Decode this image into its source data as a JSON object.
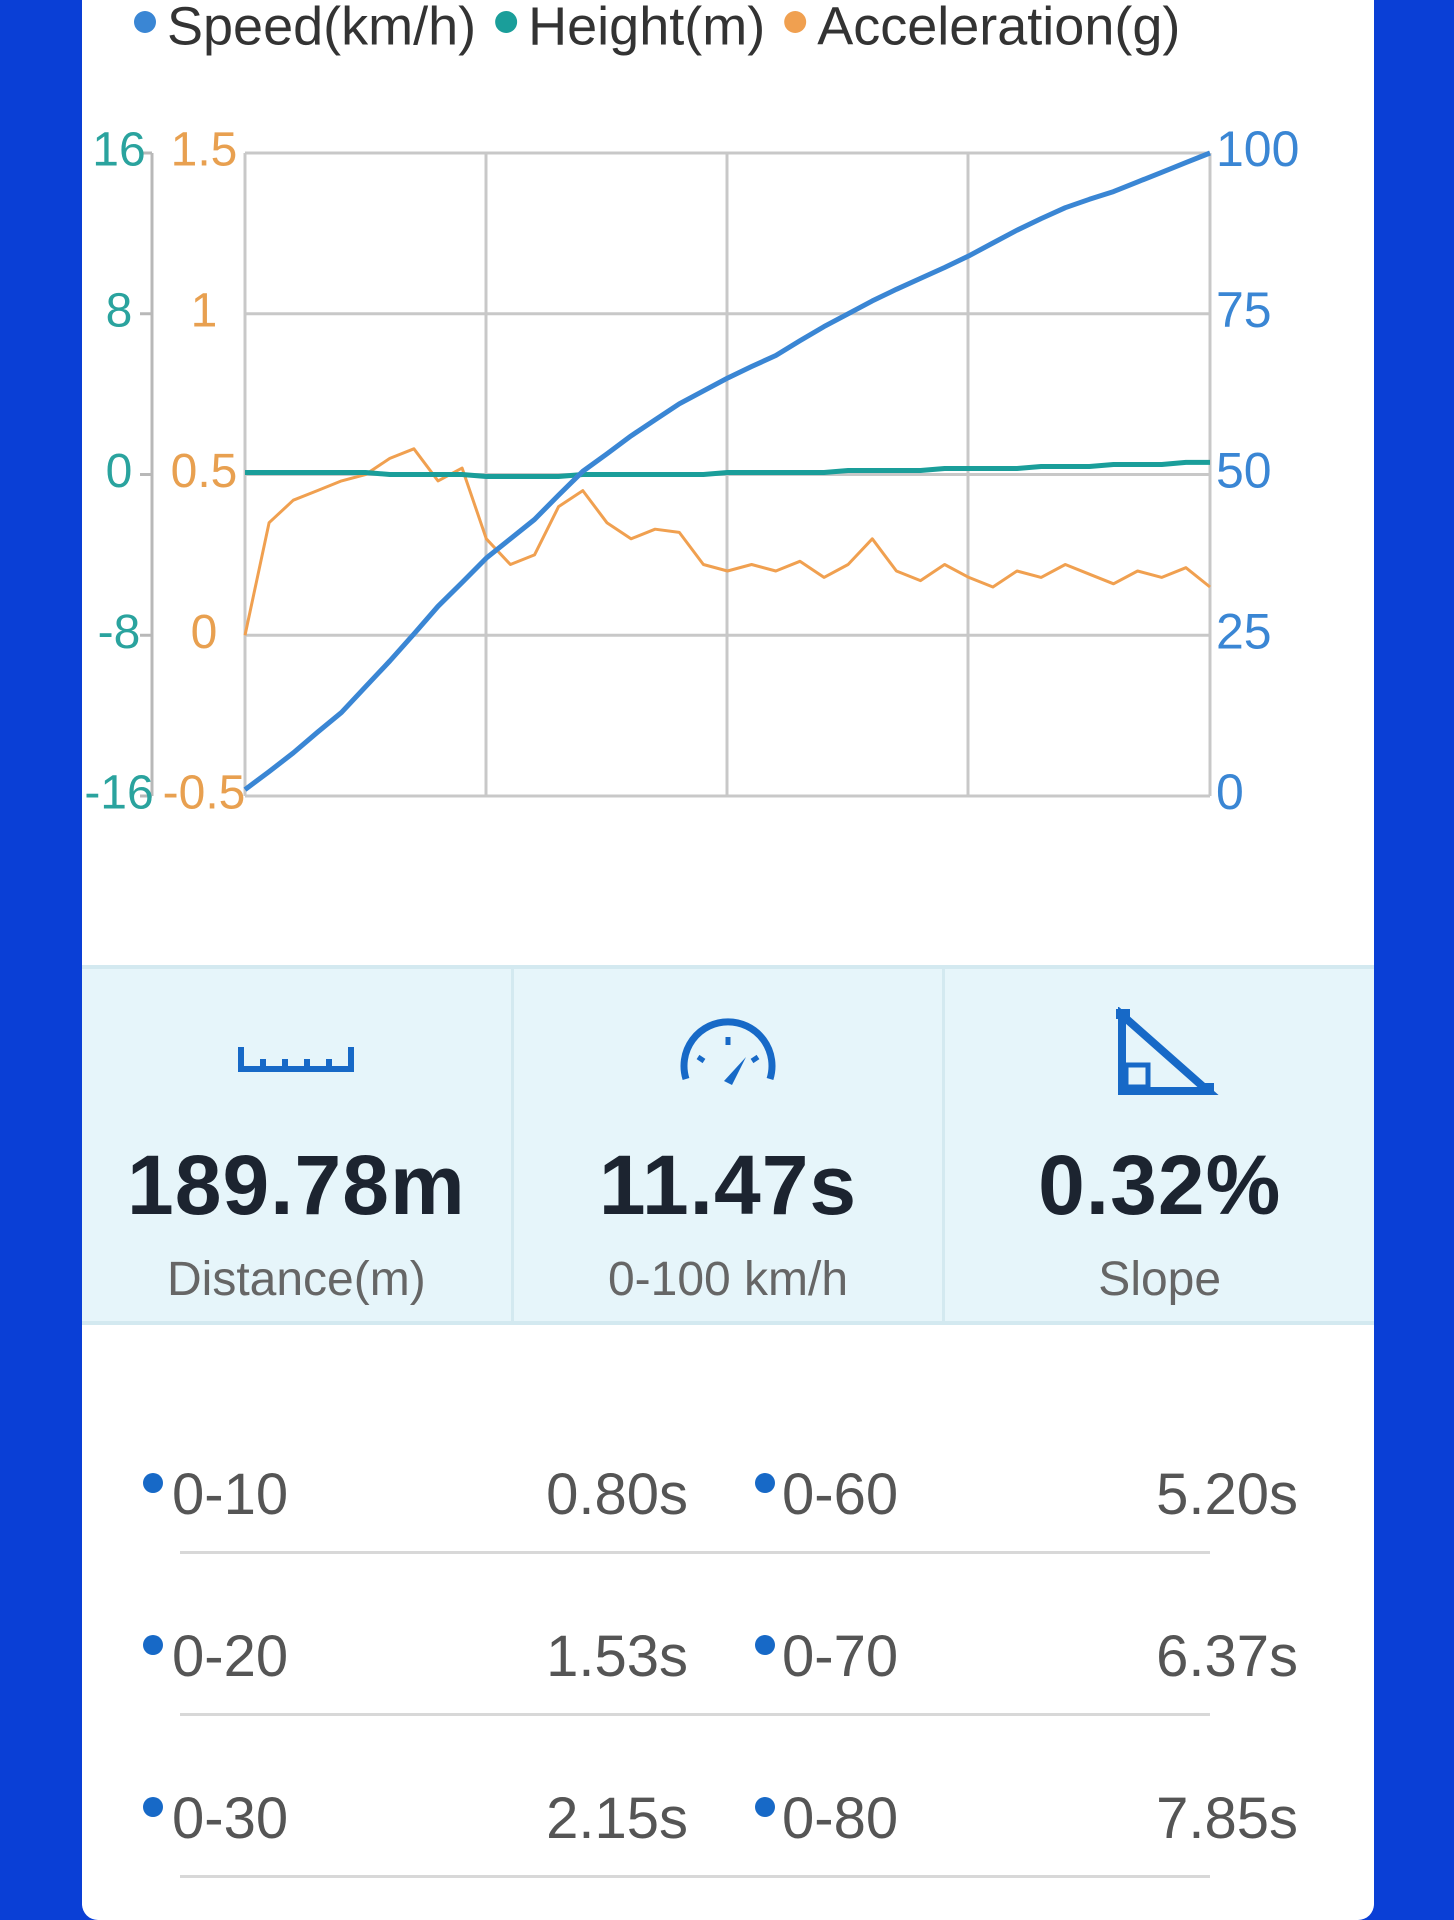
{
  "chart_data": {
    "type": "line",
    "series": [
      {
        "name": "Speed(km/h)",
        "color": "#3a86d4",
        "axis": "y2",
        "values": [
          1,
          3.8,
          6.7,
          9.9,
          13,
          17,
          21,
          25.2,
          29.5,
          33.2,
          37,
          40,
          43,
          46.8,
          50.5,
          53.2,
          56,
          58.5,
          61,
          63,
          65,
          66.8,
          68.5,
          70.8,
          73,
          75,
          77,
          78.8,
          80.5,
          82.2,
          84,
          86,
          88,
          89.8,
          91.5,
          92.8,
          94,
          95.5,
          97,
          98.5,
          100
        ]
      },
      {
        "name": "Height(m)",
        "color": "#1a9e9a",
        "axis": "y",
        "values": [
          0.1,
          0.1,
          0.1,
          0.1,
          0.1,
          0.1,
          0,
          0,
          0,
          0,
          -0.1,
          -0.1,
          -0.1,
          -0.1,
          0,
          0,
          0,
          0,
          0,
          0,
          0.1,
          0.1,
          0.1,
          0.1,
          0.1,
          0.2,
          0.2,
          0.2,
          0.2,
          0.3,
          0.3,
          0.3,
          0.3,
          0.4,
          0.4,
          0.4,
          0.5,
          0.5,
          0.5,
          0.6,
          0.6
        ]
      },
      {
        "name": "Acceleration(g)",
        "color": "#f0a050",
        "axis": "y3",
        "values": [
          0,
          0.35,
          0.42,
          0.45,
          0.48,
          0.5,
          0.55,
          0.58,
          0.48,
          0.52,
          0.3,
          0.22,
          0.25,
          0.4,
          0.45,
          0.35,
          0.3,
          0.33,
          0.32,
          0.22,
          0.2,
          0.22,
          0.2,
          0.23,
          0.18,
          0.22,
          0.3,
          0.2,
          0.17,
          0.22,
          0.18,
          0.15,
          0.2,
          0.18,
          0.22,
          0.19,
          0.16,
          0.2,
          0.18,
          0.21,
          0.15
        ]
      }
    ],
    "ylim": [
      -16,
      16
    ],
    "yticks": [
      16,
      8,
      0,
      -8,
      -16
    ],
    "y2lim": [
      0,
      100
    ],
    "y2ticks": [
      100,
      75,
      50,
      25,
      0
    ],
    "y3lim": [
      -0.5,
      1.5
    ],
    "y3ticks": [
      1.5,
      1,
      0.5,
      0,
      -0.5
    ],
    "grid": true
  },
  "stats": [
    {
      "value": "189.78m",
      "label": "Distance(m)"
    },
    {
      "value": "11.47s",
      "label": "0-100 km/h"
    },
    {
      "value": "0.32%",
      "label": "Slope"
    }
  ],
  "table": {
    "rows": [
      [
        "0-10",
        "0.80s",
        "0-60",
        "5.20s"
      ],
      [
        "0-20",
        "1.53s",
        "0-70",
        "6.37s"
      ],
      [
        "0-30",
        "2.15s",
        "0-80",
        "7.85s"
      ]
    ]
  }
}
